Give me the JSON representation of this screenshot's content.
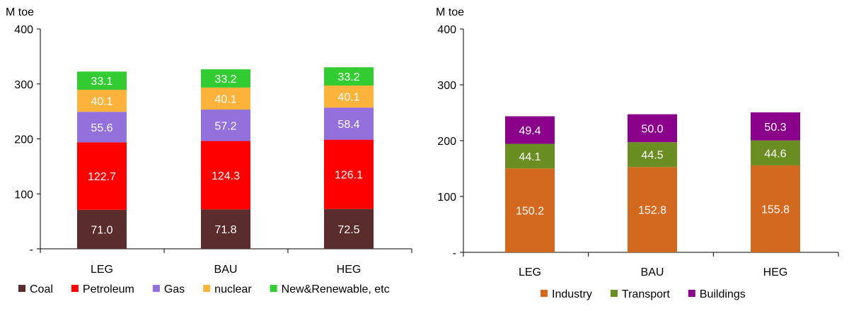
{
  "chart_data": [
    {
      "type": "bar",
      "stacked": true,
      "unit_label": "M toe",
      "ylim": [
        0,
        400
      ],
      "yticks": [
        "-",
        "100",
        "200",
        "300",
        "400"
      ],
      "categories": [
        "LEG",
        "BAU",
        "HEG"
      ],
      "series": [
        {
          "name": "Coal",
          "color": "#5b2c2c",
          "values": [
            71.0,
            71.8,
            72.5
          ],
          "labels": [
            "71.0",
            "71.8",
            "72.5"
          ]
        },
        {
          "name": "Petroleum",
          "color": "#ff0000",
          "values": [
            122.7,
            124.3,
            126.1
          ],
          "labels": [
            "122.7",
            "124.3",
            "126.1"
          ]
        },
        {
          "name": "Gas",
          "color": "#9370db",
          "values": [
            55.6,
            57.2,
            58.4
          ],
          "labels": [
            "55.6",
            "57.2",
            "58.4"
          ]
        },
        {
          "name": "nuclear",
          "color": "#fbb33b",
          "values": [
            40.1,
            40.1,
            40.1
          ],
          "labels": [
            "40.1",
            "40.1",
            "40.1"
          ]
        },
        {
          "name": "New&Renewable, etc",
          "color": "#33cc33",
          "values": [
            33.1,
            33.2,
            33.2
          ],
          "labels": [
            "33.1",
            "33.2",
            "33.2"
          ]
        }
      ],
      "legend_position": "bottom",
      "grid": false
    },
    {
      "type": "bar",
      "stacked": true,
      "unit_label": "M toe",
      "ylim": [
        0,
        400
      ],
      "yticks": [
        "-",
        "100",
        "200",
        "300",
        "400"
      ],
      "categories": [
        "LEG",
        "BAU",
        "HEG"
      ],
      "series": [
        {
          "name": "Industry",
          "color": "#d2691e",
          "values": [
            150.2,
            152.8,
            155.8
          ],
          "labels": [
            "150.2",
            "152.8",
            "155.8"
          ]
        },
        {
          "name": "Transport",
          "color": "#6b8e23",
          "values": [
            44.1,
            44.5,
            44.6
          ],
          "labels": [
            "44.1",
            "44.5",
            "44.6"
          ]
        },
        {
          "name": "Buildings",
          "color": "#8b008b",
          "values": [
            49.4,
            50.0,
            50.3
          ],
          "labels": [
            "49.4",
            "50.0",
            "50.3"
          ]
        }
      ],
      "legend_position": "bottom",
      "grid": false
    }
  ]
}
